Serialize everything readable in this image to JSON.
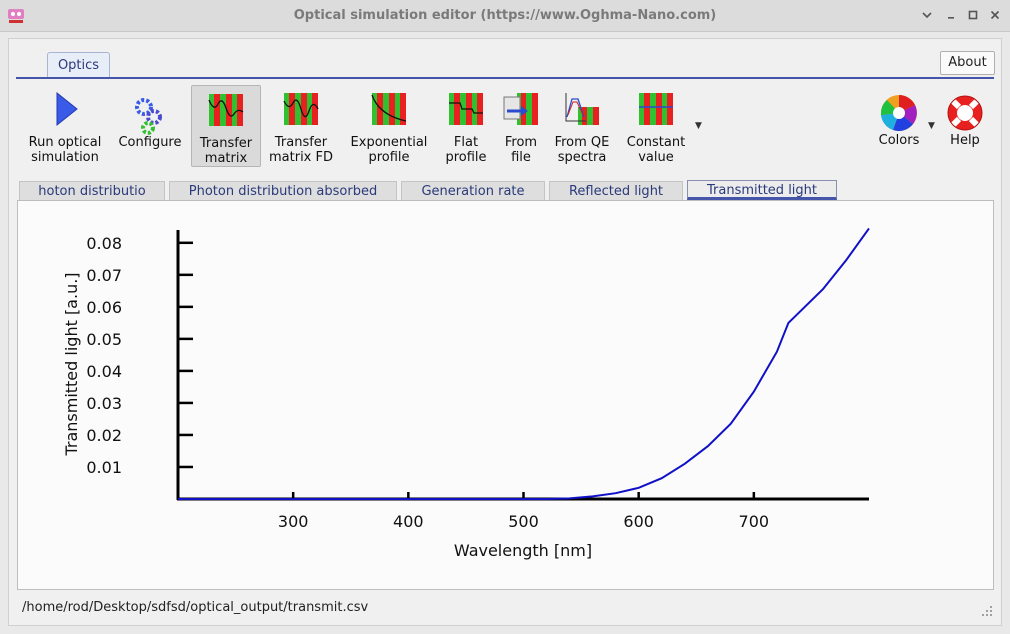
{
  "window": {
    "title": "Optical simulation editor (https://www.Oghma-Nano.com)",
    "controls": [
      "minimize-icon",
      "maximize-icon",
      "close-icon"
    ]
  },
  "ribbon": {
    "tab": "Optics",
    "about": "About",
    "tools": [
      {
        "id": "run",
        "label": "Run optical\nsimulation",
        "icon": "play-icon"
      },
      {
        "id": "configure",
        "label": "Configure",
        "icon": "gears-icon"
      },
      {
        "id": "transfer",
        "label": "Transfer\nmatrix",
        "icon": "transfer-matrix-icon",
        "active": true
      },
      {
        "id": "transferfd",
        "label": "Transfer\nmatrix FD",
        "icon": "transfer-matrix-fd-icon"
      },
      {
        "id": "exp",
        "label": "Exponential\nprofile",
        "icon": "exponential-profile-icon"
      },
      {
        "id": "flat",
        "label": "Flat\nprofile",
        "icon": "flat-profile-icon"
      },
      {
        "id": "file",
        "label": "From\nfile",
        "icon": "from-file-icon"
      },
      {
        "id": "qe",
        "label": "From QE\nspectra",
        "icon": "qe-spectra-icon"
      },
      {
        "id": "const",
        "label": "Constant\nvalue",
        "icon": "constant-value-icon"
      },
      {
        "id": "colors",
        "label": "Colors",
        "icon": "color-wheel-icon"
      },
      {
        "id": "help",
        "label": "Help",
        "icon": "lifebuoy-icon"
      }
    ]
  },
  "subtabs": [
    {
      "label": "hoton distributio"
    },
    {
      "label": "Photon distribution absorbed"
    },
    {
      "label": "Generation rate"
    },
    {
      "label": "Reflected light"
    },
    {
      "label": "Transmitted light",
      "selected": true
    }
  ],
  "chart_data": {
    "type": "line",
    "title": "",
    "xlabel": "Wavelength [nm]",
    "ylabel": "Transmitted light [a.u.]",
    "xlim": [
      200,
      800
    ],
    "ylim": [
      0,
      0.084
    ],
    "xticks": [
      300,
      400,
      500,
      600,
      700
    ],
    "yticks": [
      0.01,
      0.02,
      0.03,
      0.04,
      0.05,
      0.06,
      0.07,
      0.08
    ],
    "yticklabels": [
      "0.01",
      "0.02",
      "0.03",
      "0.04",
      "0.05",
      "0.06",
      "0.07",
      "0.08"
    ],
    "grid": false,
    "line_color": "#1010c8",
    "series": [
      {
        "x": [
          200,
          250,
          300,
          350,
          400,
          450,
          500,
          520,
          540,
          560,
          580,
          600,
          620,
          640,
          660,
          680,
          700,
          720,
          730,
          740,
          760,
          780,
          800
        ],
        "values": [
          0,
          0,
          0,
          0,
          0,
          0,
          0,
          0,
          0.0002,
          0.0008,
          0.0018,
          0.0035,
          0.0065,
          0.011,
          0.0165,
          0.0235,
          0.0335,
          0.046,
          0.055,
          0.0585,
          0.0655,
          0.0745,
          0.0845
        ]
      }
    ]
  },
  "status": {
    "path": "/home/rod/Desktop/sdfsd/optical_output/transmit.csv"
  }
}
